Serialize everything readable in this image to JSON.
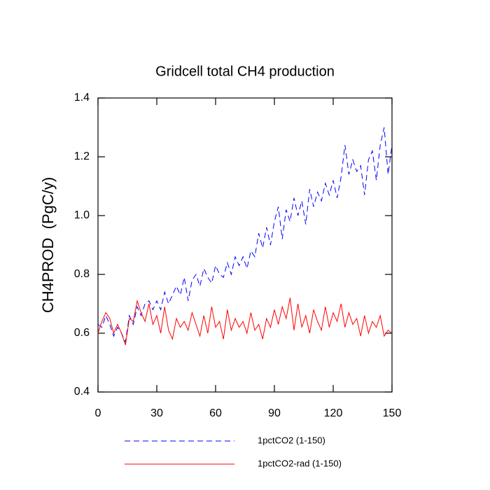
{
  "chart_data": {
    "type": "line",
    "title": "Gridcell total CH4 production",
    "y_label": "CH4PROD  (PgC/y)",
    "x": [
      0,
      2,
      4,
      6,
      8,
      10,
      12,
      14,
      16,
      18,
      20,
      22,
      24,
      26,
      28,
      30,
      32,
      34,
      36,
      38,
      40,
      42,
      44,
      46,
      48,
      50,
      52,
      54,
      56,
      58,
      60,
      62,
      64,
      66,
      68,
      70,
      72,
      74,
      76,
      78,
      80,
      82,
      84,
      86,
      88,
      90,
      92,
      94,
      96,
      98,
      100,
      102,
      104,
      106,
      108,
      110,
      112,
      114,
      116,
      118,
      120,
      122,
      124,
      126,
      128,
      130,
      132,
      134,
      136,
      138,
      140,
      142,
      144,
      146,
      148,
      150
    ],
    "series": [
      {
        "name": "1pctCO2 (1-150)",
        "color": "#0000ff",
        "linestyle": "dashed",
        "values": [
          0.63,
          0.62,
          0.66,
          0.63,
          0.59,
          0.62,
          0.6,
          0.57,
          0.66,
          0.63,
          0.69,
          0.66,
          0.7,
          0.71,
          0.68,
          0.71,
          0.68,
          0.74,
          0.7,
          0.73,
          0.76,
          0.73,
          0.79,
          0.71,
          0.78,
          0.8,
          0.76,
          0.82,
          0.79,
          0.77,
          0.83,
          0.8,
          0.79,
          0.84,
          0.8,
          0.86,
          0.83,
          0.86,
          0.82,
          0.88,
          0.86,
          0.94,
          0.89,
          0.96,
          0.9,
          0.98,
          1.03,
          0.92,
          1.02,
          0.98,
          1.06,
          1.0,
          1.05,
          0.97,
          1.09,
          1.03,
          1.08,
          1.05,
          1.11,
          1.07,
          1.12,
          1.06,
          1.13,
          1.24,
          1.14,
          1.19,
          1.15,
          1.17,
          1.07,
          1.19,
          1.22,
          1.12,
          1.24,
          1.3,
          1.14,
          1.24
        ]
      },
      {
        "name": "1pctCO2-rad (1-150)",
        "color": "#ff0000",
        "linestyle": "solid",
        "values": [
          0.6,
          0.64,
          0.67,
          0.65,
          0.6,
          0.63,
          0.6,
          0.56,
          0.65,
          0.64,
          0.71,
          0.67,
          0.64,
          0.7,
          0.63,
          0.66,
          0.6,
          0.69,
          0.61,
          0.58,
          0.65,
          0.62,
          0.64,
          0.61,
          0.67,
          0.63,
          0.59,
          0.66,
          0.6,
          0.69,
          0.62,
          0.64,
          0.58,
          0.68,
          0.61,
          0.65,
          0.62,
          0.64,
          0.6,
          0.67,
          0.61,
          0.63,
          0.58,
          0.65,
          0.62,
          0.68,
          0.63,
          0.69,
          0.65,
          0.72,
          0.61,
          0.7,
          0.62,
          0.66,
          0.6,
          0.68,
          0.64,
          0.61,
          0.69,
          0.62,
          0.67,
          0.64,
          0.7,
          0.62,
          0.67,
          0.63,
          0.65,
          0.59,
          0.66,
          0.6,
          0.64,
          0.62,
          0.66,
          0.59,
          0.61,
          0.6
        ]
      }
    ],
    "xlim": [
      0,
      150
    ],
    "xticks": [
      0,
      30,
      60,
      90,
      120,
      150
    ],
    "ylim": [
      0.4,
      1.4
    ],
    "yticks": [
      0.4,
      0.6,
      0.8,
      {
        "value": 1,
        "label": "1.0"
      },
      1.2,
      1.4
    ]
  }
}
